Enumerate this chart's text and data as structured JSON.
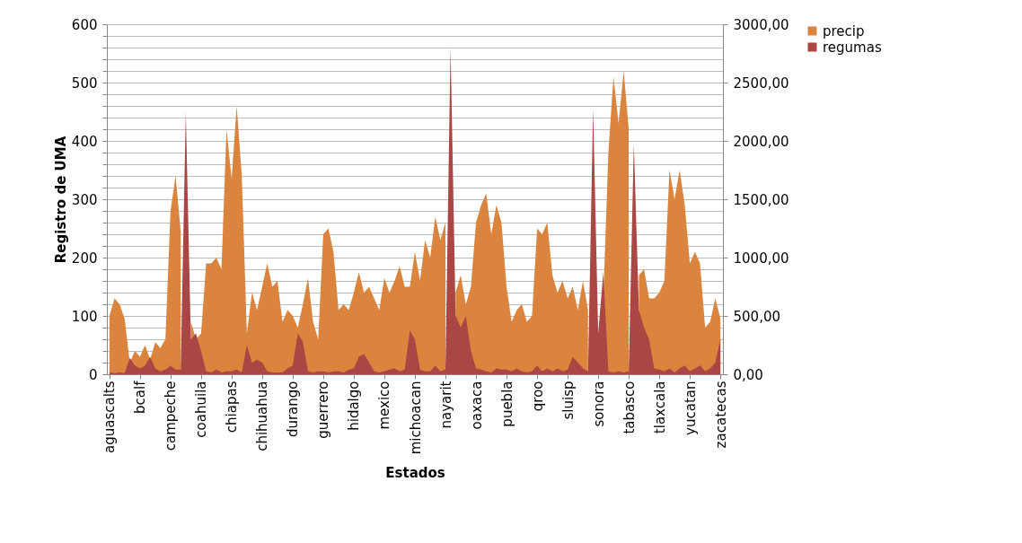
{
  "chart_data": {
    "type": "area",
    "xlabel": "Estados",
    "ylabel": "Registro de UMA",
    "categories": [
      "aguascalts",
      null,
      null,
      null,
      null,
      null,
      "bcalf",
      null,
      null,
      null,
      null,
      null,
      "campeche",
      null,
      null,
      null,
      null,
      null,
      "coahuila",
      null,
      null,
      null,
      null,
      null,
      "chiapas",
      null,
      null,
      null,
      null,
      null,
      "chihuahua",
      null,
      null,
      null,
      null,
      null,
      "durango",
      null,
      null,
      null,
      null,
      null,
      "guerrero",
      null,
      null,
      null,
      null,
      null,
      "hidalgo",
      null,
      null,
      null,
      null,
      null,
      "mexico",
      null,
      null,
      null,
      null,
      null,
      "michoacan",
      null,
      null,
      null,
      null,
      null,
      "nayarit",
      null,
      null,
      null,
      null,
      null,
      "oaxaca",
      null,
      null,
      null,
      null,
      null,
      "puebla",
      null,
      null,
      null,
      null,
      null,
      "qroo",
      null,
      null,
      null,
      null,
      null,
      "sluisp",
      null,
      null,
      null,
      null,
      null,
      "sonora",
      null,
      null,
      null,
      null,
      null,
      "tabasco",
      null,
      null,
      null,
      null,
      null,
      "tlaxcala",
      null,
      null,
      null,
      null,
      null,
      "yucatan",
      null,
      null,
      null,
      null,
      null,
      "zacatecas"
    ],
    "series": [
      {
        "name": "precip",
        "color": "#db843d",
        "axis": "y2",
        "values": [
          500,
          650,
          600,
          475,
          100,
          200,
          150,
          250,
          125,
          275,
          225,
          300,
          1400,
          1700,
          1225,
          null,
          450,
          300,
          350,
          950,
          950,
          1000,
          900,
          2100,
          1675,
          2300,
          1700,
          350,
          700,
          550,
          750,
          950,
          750,
          800,
          450,
          550,
          500,
          400,
          600,
          825,
          450,
          300,
          1200,
          1250,
          1050,
          550,
          600,
          550,
          700,
          875,
          700,
          750,
          650,
          550,
          825,
          700,
          800,
          925,
          750,
          750,
          1050,
          800,
          1150,
          1000,
          1350,
          1150,
          1300,
          null,
          700,
          850,
          600,
          750,
          1300,
          1450,
          1550,
          1200,
          1450,
          1300,
          750,
          450,
          550,
          600,
          450,
          500,
          1250,
          1200,
          1300,
          850,
          700,
          800,
          650,
          750,
          550,
          800,
          550,
          null,
          null,
          650,
          1900,
          2550,
          2150,
          2600,
          2100,
          null,
          850,
          900,
          650,
          650,
          700,
          800,
          1750,
          1500,
          1750,
          1450,
          950,
          1050,
          950,
          400,
          450,
          650,
          475
        ]
      },
      {
        "name": "regumas",
        "color": "#aa4643",
        "axis": "y",
        "values": [
          3,
          2,
          3,
          2,
          28,
          15,
          10,
          15,
          30,
          10,
          5,
          8,
          15,
          8,
          8,
          450,
          60,
          70,
          40,
          5,
          3,
          8,
          3,
          5,
          5,
          8,
          3,
          50,
          20,
          25,
          20,
          5,
          3,
          3,
          3,
          10,
          15,
          70,
          55,
          5,
          3,
          5,
          5,
          3,
          5,
          5,
          3,
          8,
          10,
          30,
          35,
          20,
          5,
          3,
          5,
          8,
          10,
          5,
          8,
          75,
          60,
          8,
          5,
          5,
          15,
          5,
          8,
          560,
          100,
          80,
          100,
          40,
          10,
          8,
          5,
          3,
          10,
          8,
          8,
          5,
          10,
          5,
          3,
          5,
          15,
          5,
          10,
          5,
          10,
          5,
          8,
          30,
          20,
          10,
          5,
          455,
          70,
          175,
          5,
          3,
          5,
          3,
          5,
          395,
          110,
          80,
          60,
          10,
          8,
          5,
          10,
          3,
          10,
          15,
          5,
          10,
          15,
          5,
          10,
          20,
          60
        ]
      }
    ],
    "ylim": [
      0,
      600
    ],
    "yticks": [
      0,
      {
        "value": 20,
        "label": null
      },
      {
        "value": 40,
        "label": null
      },
      {
        "value": 60,
        "label": null
      },
      {
        "value": 80,
        "label": null
      },
      100,
      {
        "value": 120,
        "label": null
      },
      {
        "value": 140,
        "label": null
      },
      {
        "value": 160,
        "label": null
      },
      {
        "value": 180,
        "label": null
      },
      200,
      {
        "value": 220,
        "label": null
      },
      {
        "value": 240,
        "label": null
      },
      {
        "value": 260,
        "label": null
      },
      {
        "value": 280,
        "label": null
      },
      300,
      {
        "value": 320,
        "label": null
      },
      {
        "value": 340,
        "label": null
      },
      {
        "value": 360,
        "label": null
      },
      {
        "value": 380,
        "label": null
      },
      400,
      {
        "value": 420,
        "label": null
      },
      {
        "value": 440,
        "label": null
      },
      {
        "value": 460,
        "label": null
      },
      {
        "value": 480,
        "label": null
      },
      500,
      {
        "value": 520,
        "label": null
      },
      {
        "value": 540,
        "label": null
      },
      {
        "value": 560,
        "label": null
      },
      {
        "value": 580,
        "label": null
      },
      600
    ],
    "y2lim": [
      0,
      3000
    ],
    "y2ticks": [
      {
        "value": 0,
        "label": "0,00"
      },
      {
        "value": 500,
        "label": "500,00"
      },
      {
        "value": 1000,
        "label": "1000,00"
      },
      {
        "value": 1500,
        "label": "1500,00"
      },
      {
        "value": 2000,
        "label": "2000,00"
      },
      {
        "value": 2500,
        "label": "2500,00"
      },
      {
        "value": 3000,
        "label": "3000,00"
      }
    ],
    "grid": "y",
    "legend": "right"
  }
}
